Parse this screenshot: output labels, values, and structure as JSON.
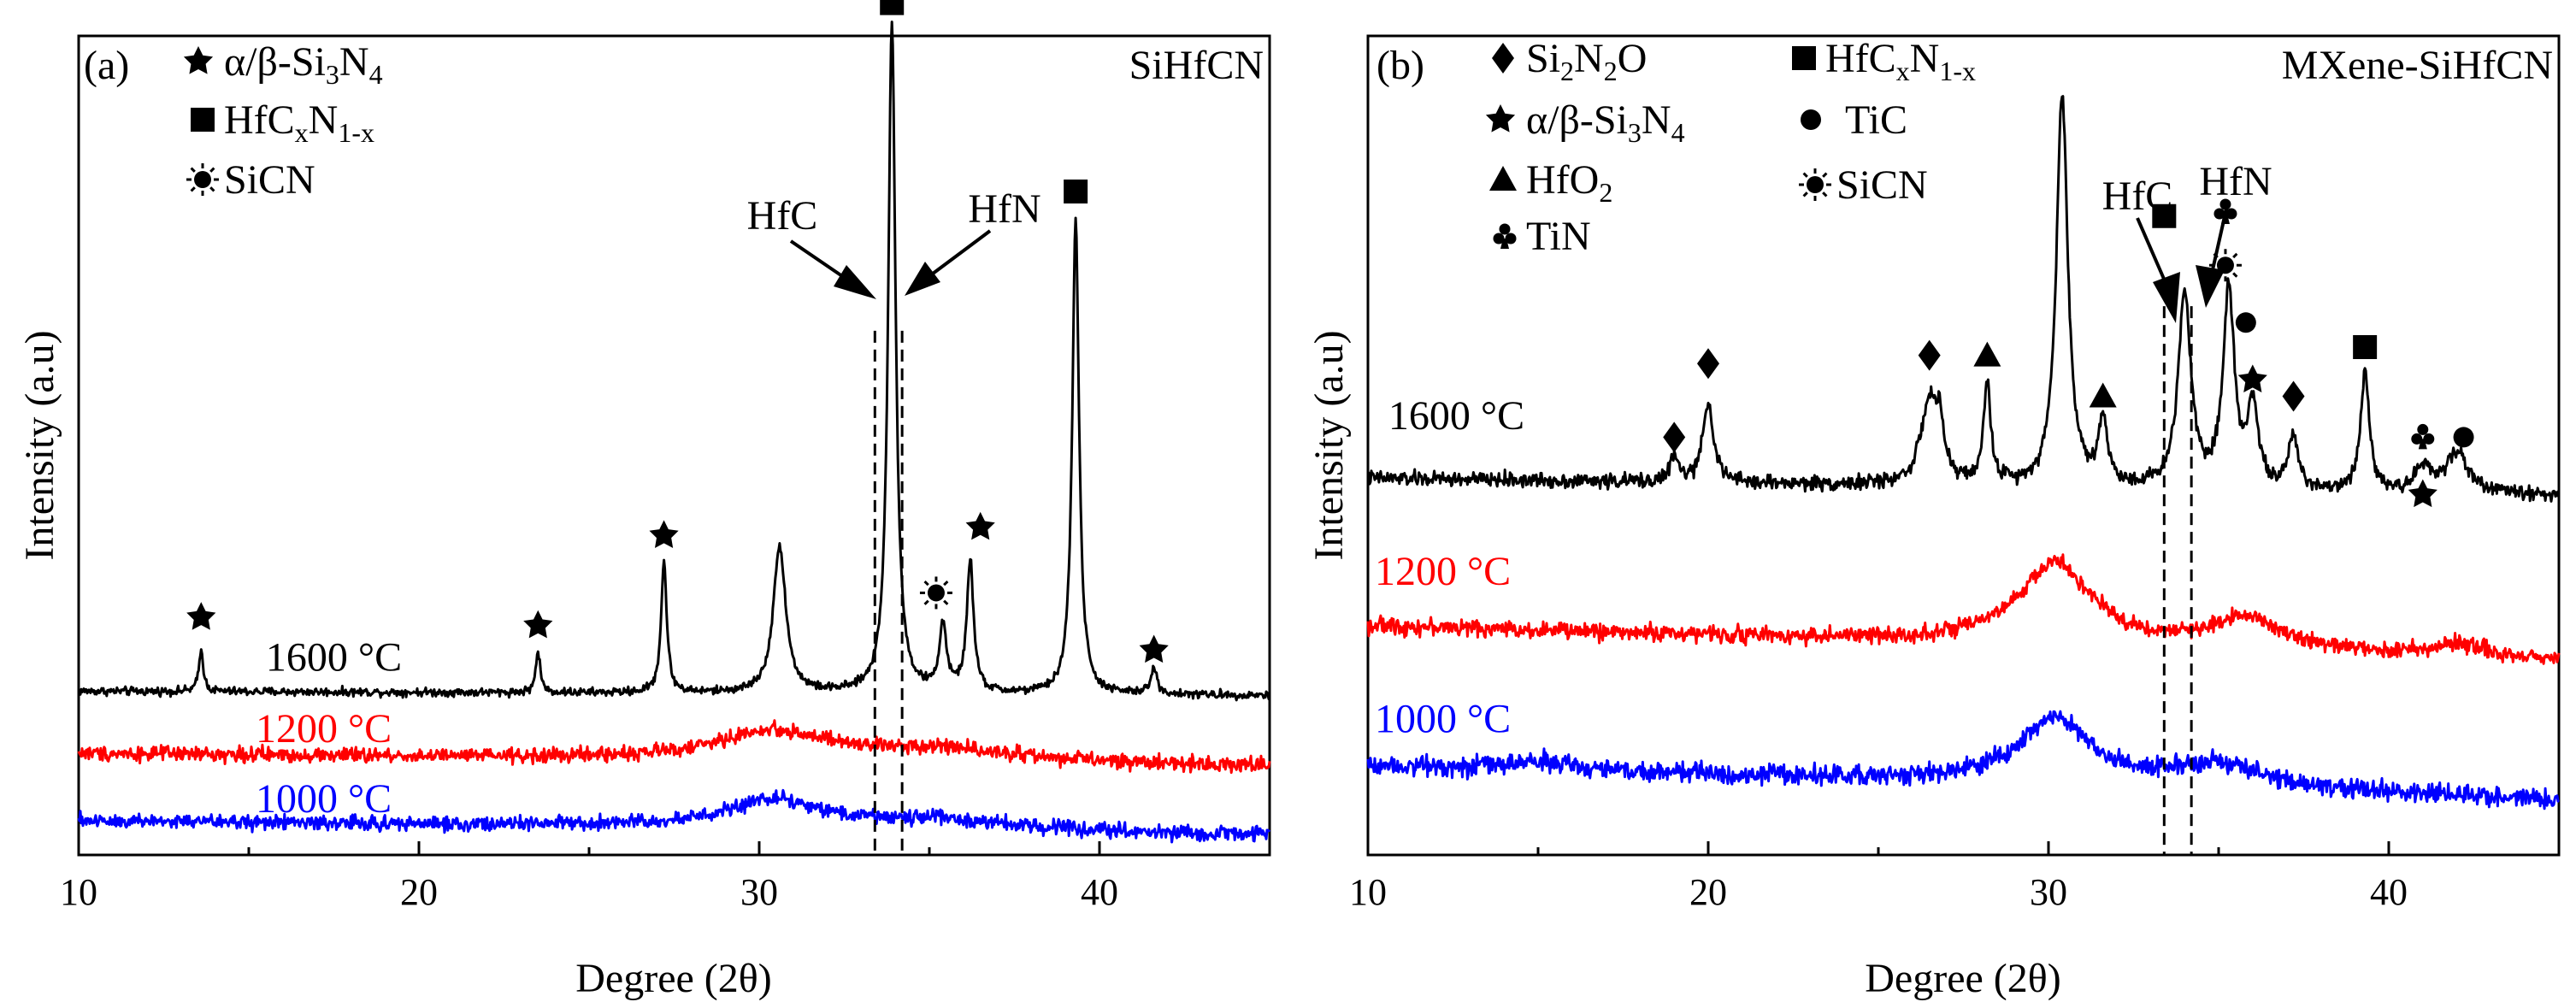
{
  "figure": {
    "panels": [
      {
        "tag": "(a)",
        "name": "SiHfCN",
        "x_label": "Degree (2θ)",
        "y_label": "Intensity (a.u)",
        "legend": [
          {
            "symbol": "star",
            "parts": [
              {
                "t": "α/β-Si"
              },
              {
                "t": "3",
                "sub": true
              },
              {
                "t": "N"
              },
              {
                "t": "4",
                "sub": true
              }
            ]
          },
          {
            "symbol": "square",
            "parts": [
              {
                "t": "HfC"
              },
              {
                "t": "x",
                "sub": true
              },
              {
                "t": "N"
              },
              {
                "t": "1-x",
                "sub": true
              }
            ]
          },
          {
            "symbol": "sun",
            "parts": [
              {
                "t": "SiCN"
              }
            ]
          }
        ],
        "vlines": [
          {
            "x": 33.4,
            "label": "HfC"
          },
          {
            "x": 34.2,
            "label": "HfN"
          }
        ]
      },
      {
        "tag": "(b)",
        "name": "MXene-SiHfCN",
        "x_label": "Degree (2θ)",
        "y_label": "Intensity (a.u)",
        "legend": [
          {
            "symbol": "diamond",
            "parts": [
              {
                "t": "Si"
              },
              {
                "t": "2",
                "sub": true
              },
              {
                "t": "N"
              },
              {
                "t": "2",
                "sub": true
              },
              {
                "t": "O"
              }
            ]
          },
          {
            "symbol": "star",
            "parts": [
              {
                "t": "α/β-Si"
              },
              {
                "t": "3",
                "sub": true
              },
              {
                "t": "N"
              },
              {
                "t": "4",
                "sub": true
              }
            ]
          },
          {
            "symbol": "triangle",
            "parts": [
              {
                "t": "HfO"
              },
              {
                "t": "2",
                "sub": true
              }
            ]
          },
          {
            "symbol": "club",
            "parts": [
              {
                "t": "TiN"
              }
            ]
          },
          {
            "symbol": "square",
            "parts": [
              {
                "t": "HfC"
              },
              {
                "t": "x",
                "sub": true
              },
              {
                "t": "N"
              },
              {
                "t": "1-x",
                "sub": true
              }
            ]
          },
          {
            "symbol": "circle",
            "parts": [
              {
                "t": "TiC"
              }
            ]
          },
          {
            "symbol": "sun",
            "parts": [
              {
                "t": "SiCN"
              }
            ]
          }
        ],
        "vlines": [
          {
            "x": 33.4,
            "label": "HfC"
          },
          {
            "x": 34.2,
            "label": "HfN"
          }
        ]
      }
    ]
  },
  "chart_data": [
    {
      "type": "line",
      "title": "SiHfCN",
      "xlabel": "Degree (2θ)",
      "ylabel": "Intensity (a.u)",
      "xlim": [
        10,
        45
      ],
      "xticks": [
        10,
        20,
        30,
        40
      ],
      "ylim": [
        0,
        100
      ],
      "yticks_shown": false,
      "series": [
        {
          "name": "1600 °C",
          "color": "#000000",
          "baseline": 20,
          "slope": -0.015,
          "noise": 0.5,
          "peaks": [
            {
              "x": 13.6,
              "h": 5,
              "w": 0.08
            },
            {
              "x": 23.5,
              "h": 5,
              "w": 0.08
            },
            {
              "x": 27.2,
              "h": 16,
              "w": 0.1
            },
            {
              "x": 30.6,
              "h": 18,
              "w": 0.22
            },
            {
              "x": 33.9,
              "h": 82,
              "w": 0.13
            },
            {
              "x": 35.4,
              "h": 8,
              "w": 0.13
            },
            {
              "x": 36.2,
              "h": 16,
              "w": 0.12
            },
            {
              "x": 39.3,
              "h": 58,
              "w": 0.12
            },
            {
              "x": 41.6,
              "h": 3,
              "w": 0.12
            }
          ]
        },
        {
          "name": "1200 °C",
          "color": "#ff0000",
          "baseline": 12.4,
          "slope": -0.045,
          "noise": 0.9,
          "peaks": [
            {
              "x": 30.4,
              "h": 3.5,
              "w": 2.0
            },
            {
              "x": 35.4,
              "h": 1.6,
              "w": 2.5
            }
          ]
        },
        {
          "name": "1000 °C",
          "color": "#0000ff",
          "baseline": 4.2,
          "slope": -0.05,
          "noise": 0.9,
          "peaks": [
            {
              "x": 30.5,
              "h": 3.5,
              "w": 1.8
            },
            {
              "x": 35.5,
              "h": 1.2,
              "w": 2.5
            }
          ]
        }
      ],
      "series_labels": [
        {
          "series": "1600 °C",
          "x": 15.5,
          "y": 22.5
        },
        {
          "series": "1200 °C",
          "x": 15.2,
          "y": 13.8
        },
        {
          "series": "1000 °C",
          "x": 15.2,
          "y": 5.2
        }
      ],
      "markers": [
        {
          "symbol": "star",
          "x": 13.6,
          "y": 29
        },
        {
          "symbol": "star",
          "x": 23.5,
          "y": 28
        },
        {
          "symbol": "star",
          "x": 27.2,
          "y": 39
        },
        {
          "symbol": "square",
          "x": 33.9,
          "y": 104
        },
        {
          "symbol": "sun",
          "x": 35.2,
          "y": 32
        },
        {
          "symbol": "star",
          "x": 36.5,
          "y": 40
        },
        {
          "symbol": "square",
          "x": 39.3,
          "y": 81
        },
        {
          "symbol": "star",
          "x": 41.6,
          "y": 25
        }
      ]
    },
    {
      "type": "line",
      "title": "MXene-SiHfCN",
      "xlabel": "Degree (2θ)",
      "ylabel": "Intensity (a.u)",
      "xlim": [
        10,
        45
      ],
      "xticks": [
        10,
        20,
        30,
        40
      ],
      "ylim": [
        0,
        100
      ],
      "yticks_shown": false,
      "series": [
        {
          "name": "1600 °C",
          "color": "#000000",
          "baseline": 46,
          "slope": -0.06,
          "noise": 0.9,
          "peaks": [
            {
              "x": 19.0,
              "h": 3,
              "w": 0.15
            },
            {
              "x": 20.0,
              "h": 10,
              "w": 0.18
            },
            {
              "x": 26.5,
              "h": 10,
              "w": 0.3
            },
            {
              "x": 26.8,
              "h": 5,
              "w": 0.15
            },
            {
              "x": 28.2,
              "h": 12,
              "w": 0.13
            },
            {
              "x": 30.4,
              "h": 48,
              "w": 0.2
            },
            {
              "x": 31.6,
              "h": 8,
              "w": 0.15
            },
            {
              "x": 34.0,
              "h": 24,
              "w": 0.22
            },
            {
              "x": 35.3,
              "h": 24,
              "w": 0.2
            },
            {
              "x": 36.0,
              "h": 10,
              "w": 0.18
            },
            {
              "x": 37.2,
              "h": 6,
              "w": 0.18
            },
            {
              "x": 39.3,
              "h": 15,
              "w": 0.15
            },
            {
              "x": 41.0,
              "h": 3,
              "w": 0.25
            },
            {
              "x": 42.0,
              "h": 5,
              "w": 0.4
            }
          ]
        },
        {
          "name": "1200 °C",
          "color": "#ff0000",
          "baseline": 28,
          "slope": -0.12,
          "noise": 1.0,
          "peaks": [
            {
              "x": 30.2,
              "h": 10,
              "w": 1.3
            },
            {
              "x": 35.8,
              "h": 4,
              "w": 1.2
            },
            {
              "x": 42.0,
              "h": 1.5,
              "w": 0.8
            }
          ]
        },
        {
          "name": "1000 °C",
          "color": "#0000ff",
          "baseline": 11,
          "slope": -0.12,
          "noise": 1.2,
          "peaks": [
            {
              "x": 30.2,
              "h": 8,
              "w": 1.3
            },
            {
              "x": 35.0,
              "h": 3,
              "w": 1.5
            },
            {
              "x": 15.0,
              "h": 1,
              "w": 1.0
            }
          ]
        }
      ],
      "series_labels": [
        {
          "series": "1600 °C",
          "x": 10.6,
          "y": 52
        },
        {
          "series": "1200 °C",
          "x": 10.2,
          "y": 33
        },
        {
          "series": "1000 °C",
          "x": 10.2,
          "y": 15
        }
      ],
      "markers": [
        {
          "symbol": "diamond",
          "x": 19.0,
          "y": 51
        },
        {
          "symbol": "diamond",
          "x": 20.0,
          "y": 60
        },
        {
          "symbol": "diamond",
          "x": 26.5,
          "y": 61
        },
        {
          "symbol": "triangle",
          "x": 28.2,
          "y": 61
        },
        {
          "symbol": "triangle",
          "x": 31.6,
          "y": 56
        },
        {
          "symbol": "square",
          "x": 33.4,
          "y": 78
        },
        {
          "symbol": "club",
          "x": 35.2,
          "y": 78.5
        },
        {
          "symbol": "sun",
          "x": 35.2,
          "y": 72
        },
        {
          "symbol": "circle",
          "x": 35.8,
          "y": 65
        },
        {
          "symbol": "star",
          "x": 36.0,
          "y": 58
        },
        {
          "symbol": "diamond",
          "x": 37.2,
          "y": 56
        },
        {
          "symbol": "square",
          "x": 39.3,
          "y": 62
        },
        {
          "symbol": "club",
          "x": 41.0,
          "y": 51
        },
        {
          "symbol": "star",
          "x": 41.0,
          "y": 44
        },
        {
          "symbol": "circle",
          "x": 42.2,
          "y": 51
        }
      ]
    }
  ]
}
